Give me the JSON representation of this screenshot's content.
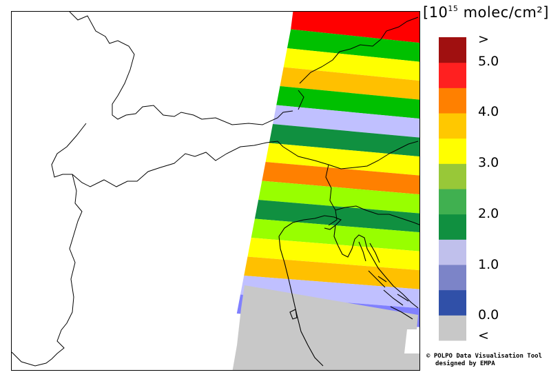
{
  "legend": {
    "unit_prefix": "[10",
    "unit_exponent": "15",
    "unit_suffix": " molec/cm²]",
    "colors": [
      "#c8c8c8",
      "#3050a8",
      "#7c84c8",
      "#c0c0ec",
      "#109040",
      "#40b050",
      "#98c838",
      "#ffff00",
      "#ffc800",
      "#ff8000",
      "#ff2020",
      "#a01010"
    ],
    "labels": [
      ">",
      "5.0",
      "4.0",
      "3.0",
      "2.0",
      "1.0",
      "0.0",
      "<"
    ]
  },
  "swath_colors": [
    "#ff0000",
    "#00c000",
    "#ffff00",
    "#ffc000",
    "#00c000",
    "#c0c0ff",
    "#109040",
    "#ffff00",
    "#ff8000",
    "#98ff00",
    "#109040",
    "#98ff00",
    "#ffff00",
    "#ffc000",
    "#c0c0ff",
    "#8080ff"
  ],
  "credits": {
    "line1": "© POLPO Data Visualisation Tool",
    "line2": "designed by EMPA"
  }
}
